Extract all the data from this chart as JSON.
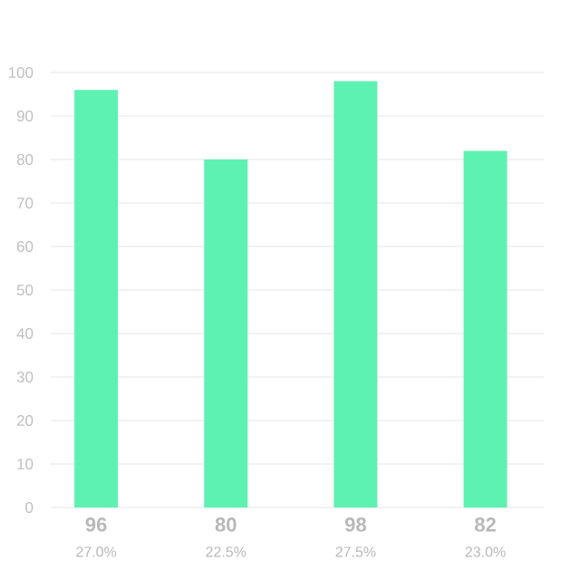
{
  "chart_data": {
    "type": "bar",
    "categories": [
      "27.0%",
      "22.5%",
      "27.5%",
      "23.0%"
    ],
    "values": [
      96,
      80,
      98,
      82
    ],
    "color": "#5ef2b2",
    "data_labels": true,
    "grid": "y",
    "ylim": [
      0,
      100
    ],
    "yticks": [
      0,
      10,
      20,
      30,
      40,
      50,
      60,
      70,
      80,
      90,
      100
    ]
  }
}
